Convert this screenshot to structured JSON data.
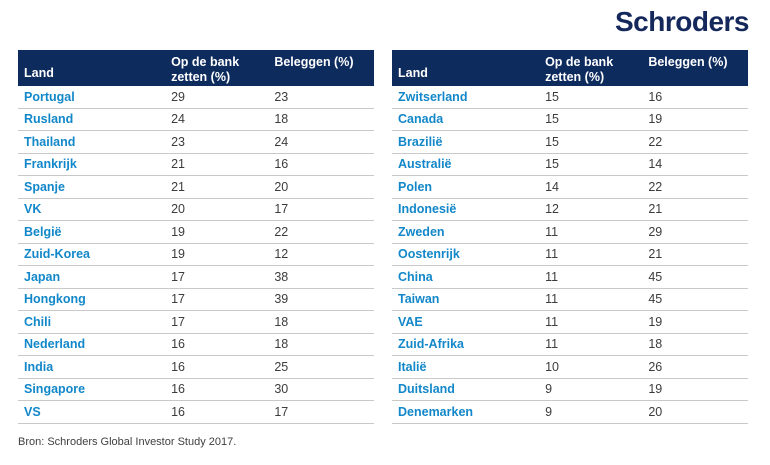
{
  "logo": {
    "text": "Schroders"
  },
  "colors": {
    "header_navy": "#0e2b5e",
    "logo_navy": "#15285c",
    "country_blue": "#1287c9",
    "value_gray": "#3c3c3c",
    "row_divider": "#c9c9c9"
  },
  "tables": [
    {
      "headers": [
        "Land",
        "Op de bank zetten (%)",
        "Beleggen (%)"
      ],
      "rows": [
        [
          "Portugal",
          29,
          23
        ],
        [
          "Rusland",
          24,
          18
        ],
        [
          "Thailand",
          23,
          24
        ],
        [
          "Frankrijk",
          21,
          16
        ],
        [
          "Spanje",
          21,
          20
        ],
        [
          "VK",
          20,
          17
        ],
        [
          "België",
          19,
          22
        ],
        [
          "Zuid-Korea",
          19,
          12
        ],
        [
          "Japan",
          17,
          38
        ],
        [
          "Hongkong",
          17,
          39
        ],
        [
          "Chili",
          17,
          18
        ],
        [
          "Nederland",
          16,
          18
        ],
        [
          "India",
          16,
          25
        ],
        [
          "Singapore",
          16,
          30
        ],
        [
          "VS",
          16,
          17
        ]
      ]
    },
    {
      "headers": [
        "Land",
        "Op de bank zetten (%)",
        "Beleggen (%)"
      ],
      "rows": [
        [
          "Zwitserland",
          15,
          16
        ],
        [
          "Canada",
          15,
          19
        ],
        [
          "Brazilië",
          15,
          22
        ],
        [
          "Australië",
          15,
          14
        ],
        [
          "Polen",
          14,
          22
        ],
        [
          "Indonesië",
          12,
          21
        ],
        [
          "Zweden",
          11,
          29
        ],
        [
          "Oostenrijk",
          11,
          21
        ],
        [
          "China",
          11,
          45
        ],
        [
          "Taiwan",
          11,
          45
        ],
        [
          "VAE",
          11,
          19
        ],
        [
          "Zuid-Afrika",
          11,
          18
        ],
        [
          "Italië",
          10,
          26
        ],
        [
          "Duitsland",
          9,
          19
        ],
        [
          "Denemarken",
          9,
          20
        ]
      ]
    }
  ],
  "source": "Bron: Schroders Global Investor Study 2017.",
  "chart_data": [
    {
      "type": "table",
      "title": "",
      "columns": [
        "Land",
        "Op de bank zetten (%)",
        "Beleggen (%)"
      ],
      "rows": [
        [
          "Portugal",
          29,
          23
        ],
        [
          "Rusland",
          24,
          18
        ],
        [
          "Thailand",
          23,
          24
        ],
        [
          "Frankrijk",
          21,
          16
        ],
        [
          "Spanje",
          21,
          20
        ],
        [
          "VK",
          20,
          17
        ],
        [
          "België",
          19,
          22
        ],
        [
          "Zuid-Korea",
          19,
          12
        ],
        [
          "Japan",
          17,
          38
        ],
        [
          "Hongkong",
          17,
          39
        ],
        [
          "Chili",
          17,
          18
        ],
        [
          "Nederland",
          16,
          18
        ],
        [
          "India",
          16,
          25
        ],
        [
          "Singapore",
          16,
          30
        ],
        [
          "VS",
          16,
          17
        ]
      ]
    },
    {
      "type": "table",
      "title": "",
      "columns": [
        "Land",
        "Op de bank zetten (%)",
        "Beleggen (%)"
      ],
      "rows": [
        [
          "Zwitserland",
          15,
          16
        ],
        [
          "Canada",
          15,
          19
        ],
        [
          "Brazilië",
          15,
          22
        ],
        [
          "Australië",
          15,
          14
        ],
        [
          "Polen",
          14,
          22
        ],
        [
          "Indonesië",
          12,
          21
        ],
        [
          "Zweden",
          11,
          29
        ],
        [
          "Oostenrijk",
          11,
          21
        ],
        [
          "China",
          11,
          45
        ],
        [
          "Taiwan",
          11,
          45
        ],
        [
          "VAE",
          11,
          19
        ],
        [
          "Zuid-Afrika",
          11,
          18
        ],
        [
          "Italië",
          10,
          26
        ],
        [
          "Duitsland",
          9,
          19
        ],
        [
          "Denemarken",
          9,
          20
        ]
      ]
    }
  ]
}
